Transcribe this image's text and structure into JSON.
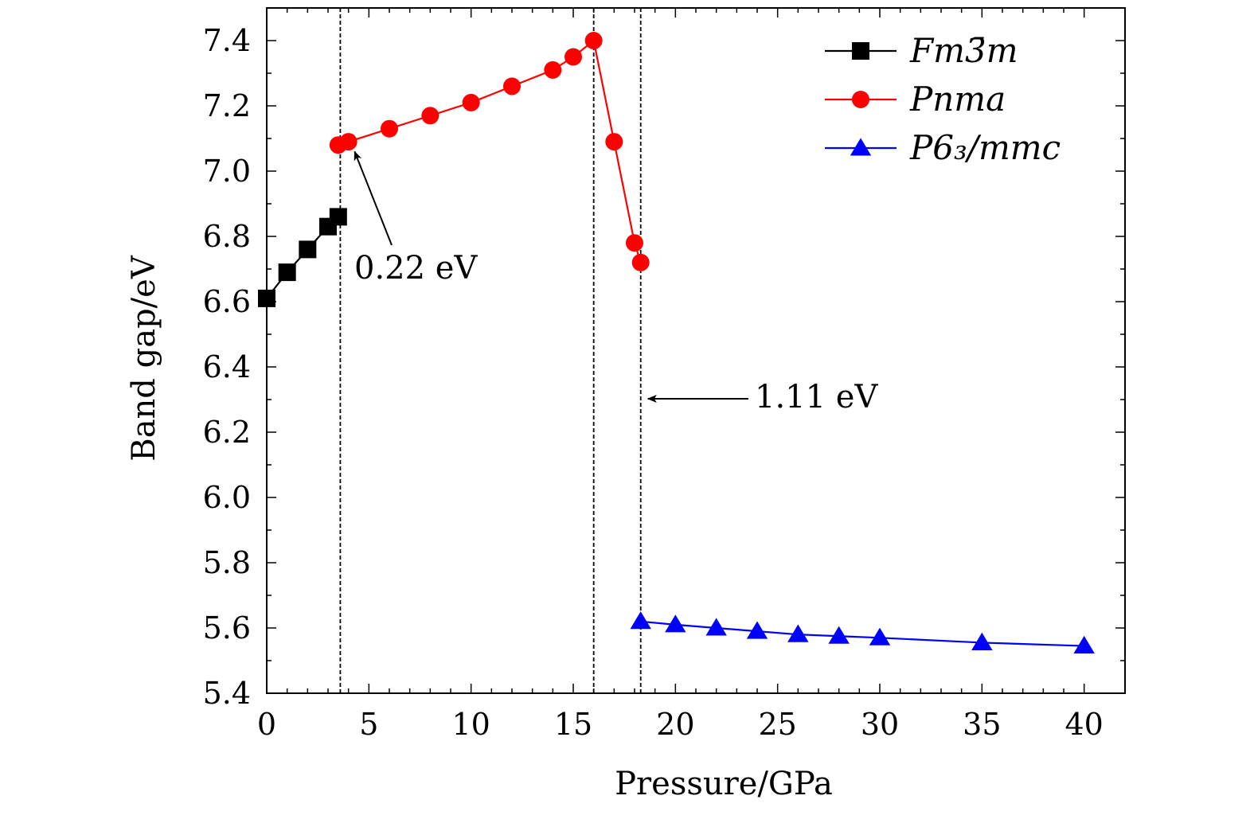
{
  "chart_data": {
    "type": "line",
    "xlabel": "Pressure/GPa",
    "ylabel": "Band gap/eV",
    "xlim": [
      0,
      42
    ],
    "ylim": [
      5.4,
      7.5
    ],
    "xticks": [
      "0",
      "5",
      "10",
      "15",
      "20",
      "25",
      "30",
      "35",
      "40"
    ],
    "yticks": [
      "5.4",
      "5.6",
      "5.8",
      "6.0",
      "6.2",
      "6.4",
      "6.6",
      "6.8",
      "7.0",
      "7.2",
      "7.4"
    ],
    "grid": false,
    "legend_position": "top-right",
    "series": [
      {
        "name": "Fm3̄m",
        "color": "#000000",
        "marker": "square",
        "x": [
          0,
          1,
          2,
          3,
          3.5
        ],
        "y": [
          6.61,
          6.69,
          6.76,
          6.83,
          6.86
        ]
      },
      {
        "name": "Pnma",
        "color": "#ff0000",
        "marker": "circle",
        "x": [
          3.5,
          4,
          6,
          8,
          10,
          12,
          14,
          15,
          16,
          17,
          18,
          18.3
        ],
        "y": [
          7.08,
          7.09,
          7.13,
          7.17,
          7.21,
          7.26,
          7.31,
          7.35,
          7.4,
          7.09,
          6.78,
          6.72
        ]
      },
      {
        "name": "P6₃/mmc",
        "color": "#0000ff",
        "marker": "triangle",
        "x": [
          18.3,
          20,
          22,
          24,
          26,
          28,
          30,
          35,
          40
        ],
        "y": [
          5.62,
          5.61,
          5.6,
          5.59,
          5.58,
          5.575,
          5.57,
          5.555,
          5.545
        ]
      }
    ],
    "vlines": [
      3.6,
      16,
      18.3
    ],
    "annotations": [
      {
        "text": "0.22 eV",
        "arrow_to": [
          4.3,
          7.06
        ]
      },
      {
        "text": "1.11 eV",
        "arrow_to": [
          18.5,
          6.3
        ]
      }
    ]
  }
}
